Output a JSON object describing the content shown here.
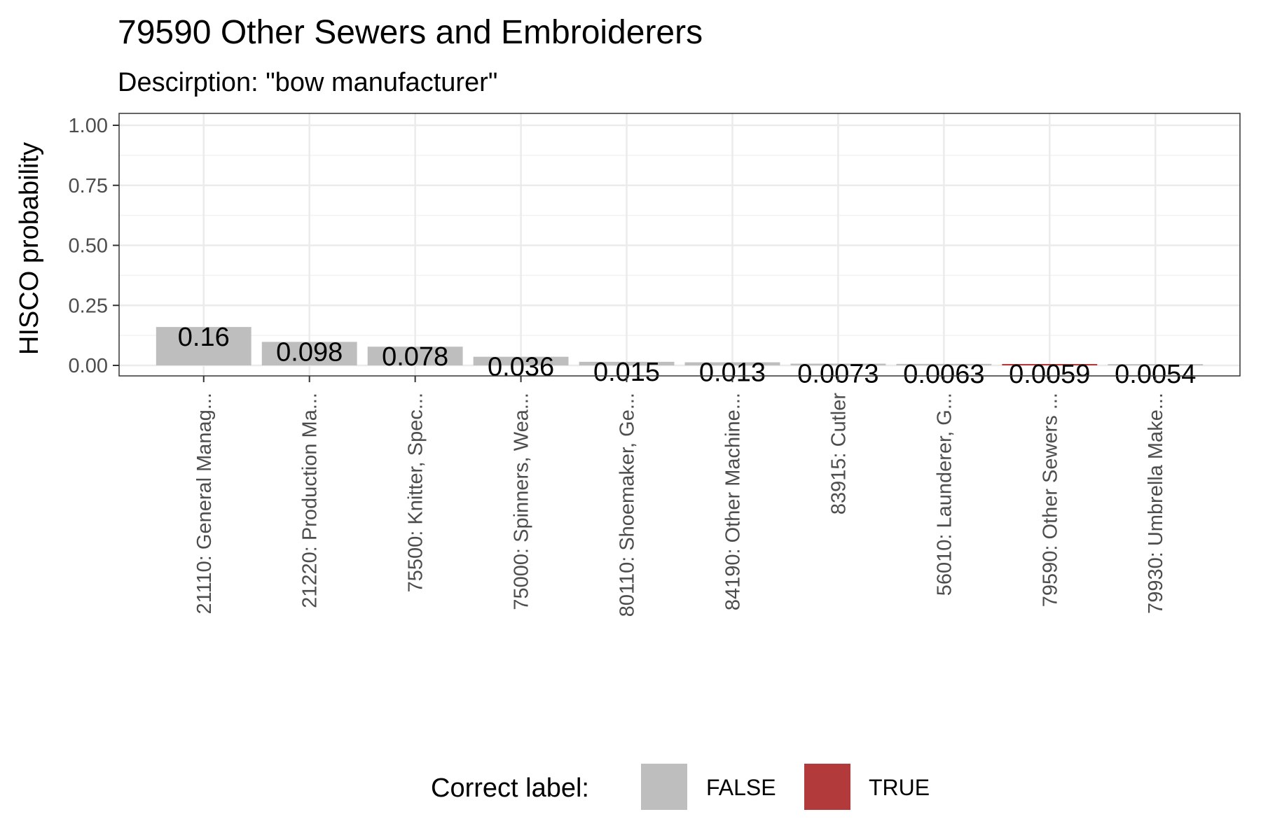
{
  "chart_data": {
    "type": "bar",
    "title": "79590 Other Sewers and Embroiderers",
    "subtitle": "Descirption: \"bow manufacturer\"",
    "ylabel": "HISCO probability",
    "xlabel": "",
    "ylim": [
      0,
      1
    ],
    "yticks": [
      "0.00",
      "0.25",
      "0.50",
      "0.75",
      "1.00"
    ],
    "grid": true,
    "categories": [
      "21110: General Manag...",
      "21220: Production Ma...",
      "75500: Knitter, Spec...",
      "75000: Spinners, Wea...",
      "80110: Shoemaker, Ge...",
      "84190: Other Machine...",
      "83915: Cutler",
      "56010: Launderer,  G...",
      "79590: Other Sewers ...",
      "79930: Umbrella Make..."
    ],
    "values": [
      0.16,
      0.098,
      0.078,
      0.036,
      0.015,
      0.013,
      0.0073,
      0.0063,
      0.0059,
      0.0054
    ],
    "value_labels": [
      "0.16",
      "0.098",
      "0.078",
      "0.036",
      "0.015",
      "0.013",
      "0.0073",
      "0.0063",
      "0.0059",
      "0.0054"
    ],
    "correct": [
      false,
      false,
      false,
      false,
      false,
      false,
      false,
      false,
      true,
      false
    ],
    "legend": {
      "title": "Correct label:",
      "position": "bottom",
      "items": [
        {
          "label": "FALSE",
          "color": "#bebebe"
        },
        {
          "label": "TRUE",
          "color": "#b33a3a"
        }
      ]
    }
  }
}
